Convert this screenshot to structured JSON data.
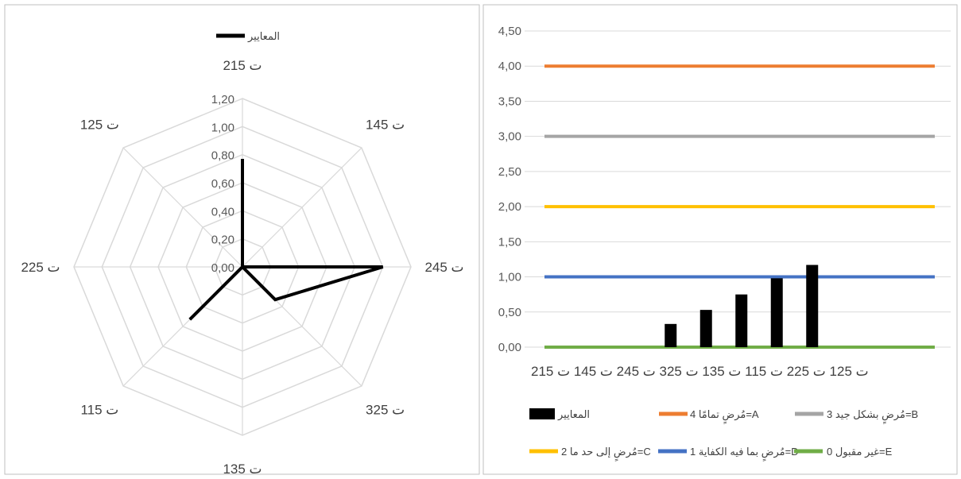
{
  "chart_data": [
    {
      "type": "radar",
      "legend": "top",
      "series": [
        {
          "name": "المعايير",
          "color": "#000000",
          "values": [
            0.77,
            0.0,
            1.0,
            0.33,
            0.0,
            0.53,
            0.0,
            0.0
          ]
        }
      ],
      "categories": [
        "ت 215",
        "ت 145",
        "ت 245",
        "ت 325",
        "ت 135",
        "ت 115",
        "ت 225",
        "ت 125"
      ],
      "axis": {
        "min": 0,
        "max": 1.2,
        "ticks": [
          "0,00",
          "0,20",
          "0,40",
          "0,60",
          "0,80",
          "1,00",
          "1,20"
        ]
      },
      "grid": true
    },
    {
      "type": "bar+line",
      "legend": "bottom",
      "categories": [
        "ت 125",
        "ت 225",
        "ت 115",
        "ت 135",
        "ت 325",
        "ت 245",
        "ت 145",
        "ت 215"
      ],
      "category_axis_label": "ت 125 ت 225 ت 115 ت 135 ت 325 ت 245 ت 145 ت 215",
      "bars": {
        "name": "المعايير",
        "color": "#000000",
        "values": [
          0.0,
          0.0,
          0.0,
          0.33,
          0.53,
          0.75,
          0.98,
          1.17
        ]
      },
      "lines": [
        {
          "name": "مُرضٍ تمامًا 4=A",
          "color": "#ed7d31",
          "value": 4
        },
        {
          "name": "مُرضٍ بشكل جيد 3=B",
          "color": "#a5a5a5",
          "value": 3
        },
        {
          "name": "مُرضٍ إلى حد ما 2=C",
          "color": "#ffc000",
          "value": 2
        },
        {
          "name": "مُرضٍ بما فيه الكفاية 1=D",
          "color": "#4472c4",
          "value": 1
        },
        {
          "name": "غير مقبول 0=E",
          "color": "#70ad47",
          "value": 0
        }
      ],
      "ylim": [
        0,
        4.5
      ],
      "yticks": [
        "0,00",
        "0,50",
        "1,00",
        "1,50",
        "2,00",
        "2,50",
        "3,00",
        "3,50",
        "4,00",
        "4,50"
      ],
      "grid": true
    }
  ]
}
